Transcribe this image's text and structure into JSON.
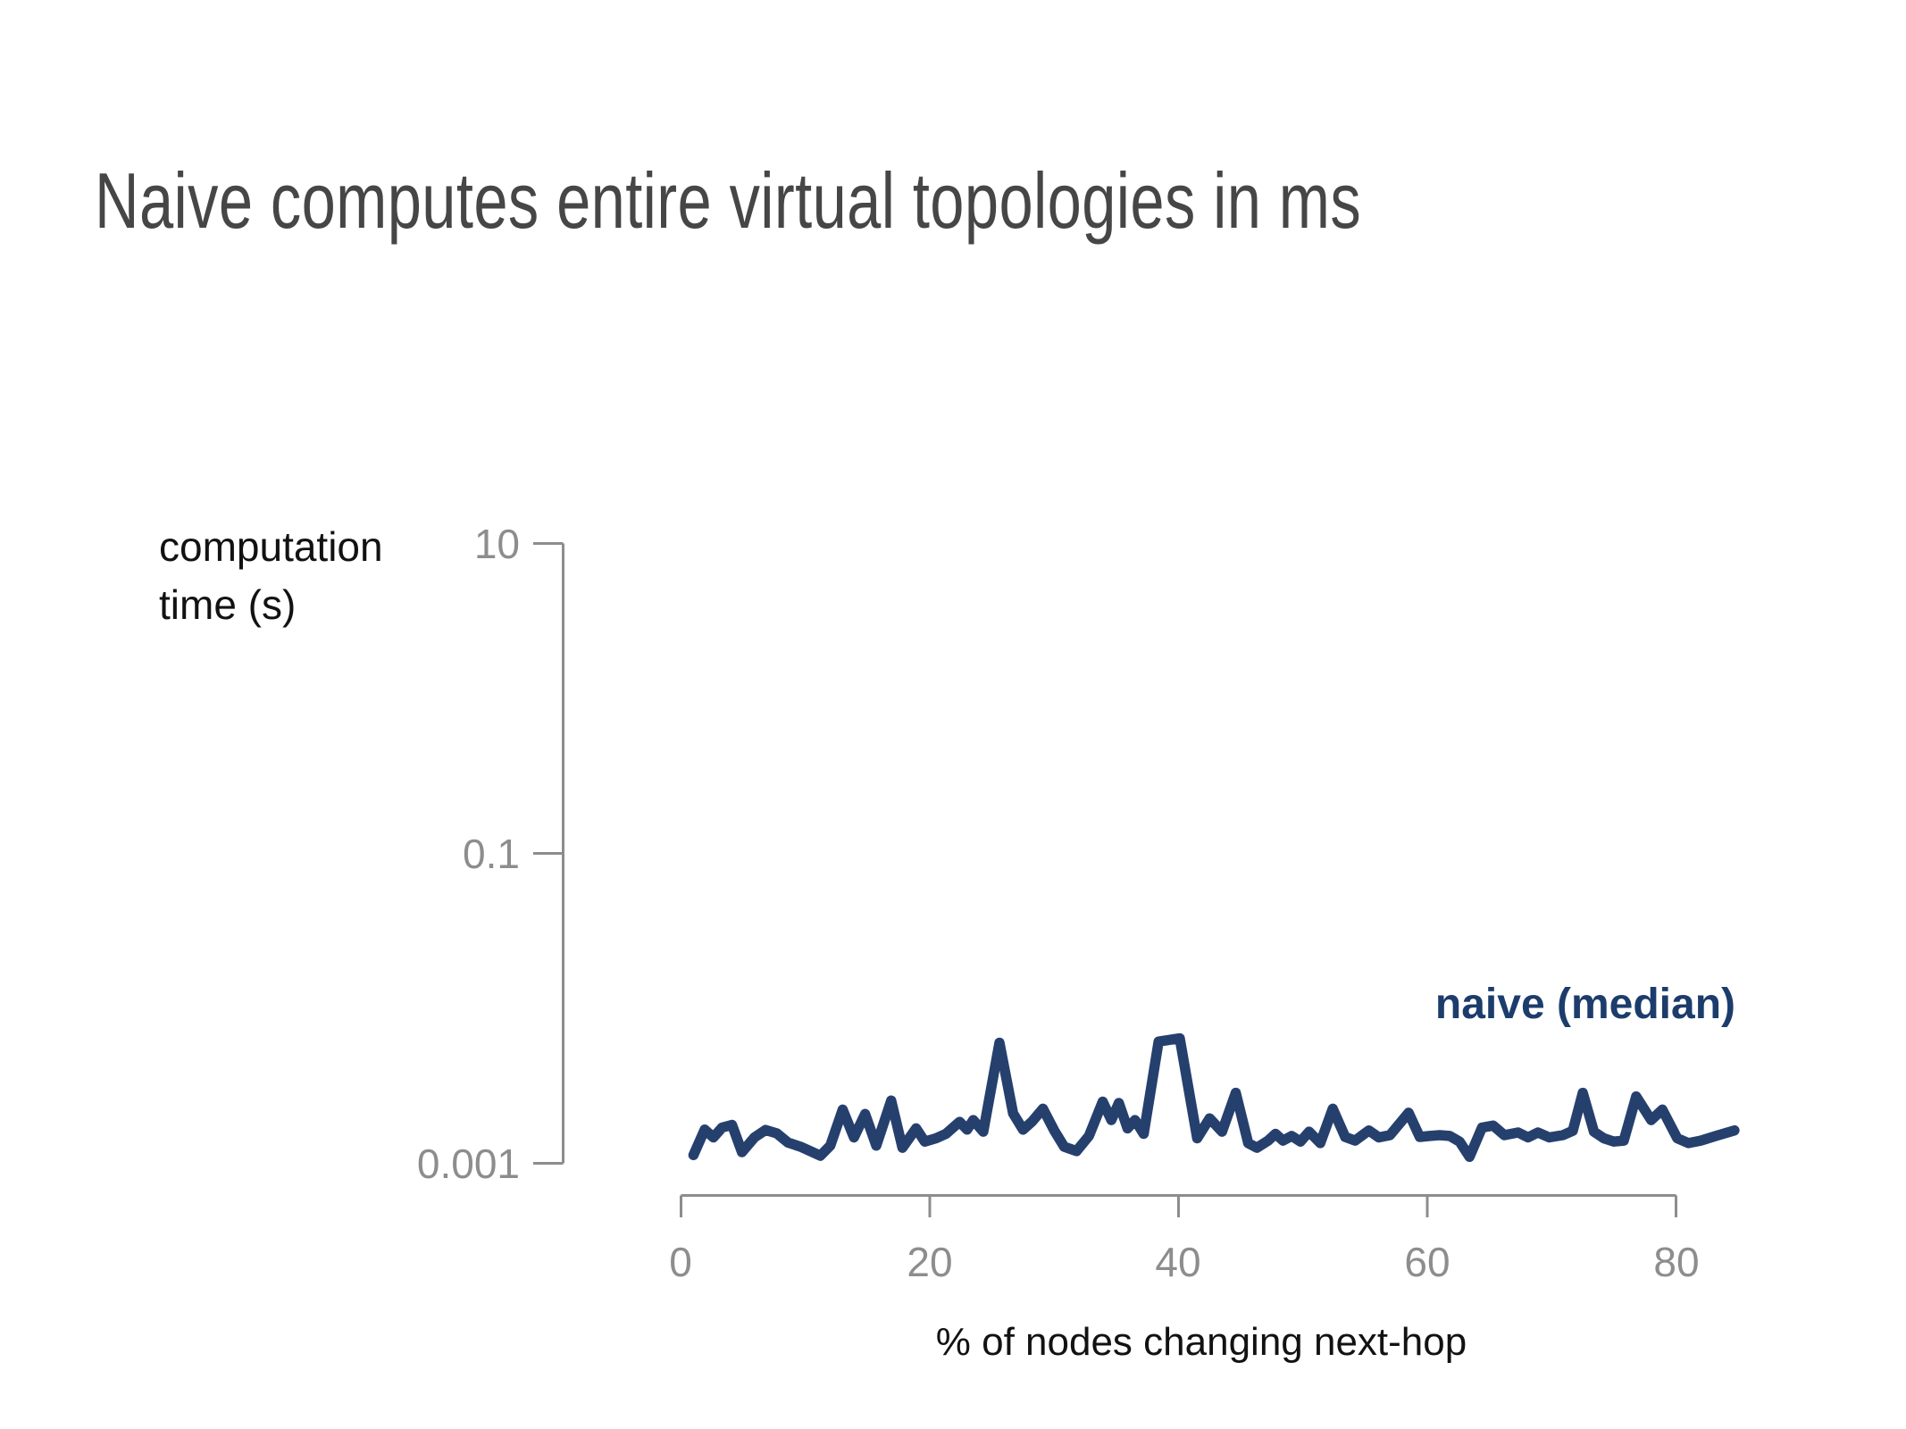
{
  "chart_data": {
    "type": "line",
    "title": "Naive computes entire virtual topologies in ms",
    "xlabel": "% of nodes changing next-hop",
    "ylabel": "computation\ntime (s)",
    "xscale": "linear",
    "yscale": "log",
    "xlim": [
      0,
      80
    ],
    "ylim": [
      0.001,
      10
    ],
    "grid": false,
    "x_tick_labels": [
      "0",
      "20",
      "40",
      "60",
      "80"
    ],
    "y_tick_labels": [
      "10",
      "0.1",
      "0.001"
    ],
    "legend": {
      "label": "naive (median)",
      "position": "right-of-plot",
      "color": "#1c3c6c"
    },
    "series": [
      {
        "name": "naive (median)",
        "color": "#26406e",
        "x": [
          1,
          1.9,
          2.6,
          3.3,
          4.1,
          4.9,
          5.9,
          6.8,
          7.7,
          8.6,
          9.6,
          11.2,
          12,
          13,
          13.9,
          14.8,
          15.7,
          16.9,
          17.8,
          18.9,
          19.6,
          20.5,
          21.3,
          22.4,
          23,
          23.5,
          24.3,
          25.6,
          26.7,
          27.5,
          28.2,
          29.1,
          30,
          30.8,
          31.8,
          32.8,
          33.9,
          34.6,
          35.2,
          35.9,
          36.5,
          37.2,
          38.4,
          40.1,
          41.5,
          42.5,
          43.5,
          44.6,
          45.6,
          46.3,
          47.2,
          47.8,
          48.4,
          49.1,
          49.8,
          50.5,
          51.4,
          52.4,
          53.4,
          54.2,
          55.3,
          56.1,
          57,
          58.5,
          59.4,
          60.2,
          61,
          61.8,
          62.6,
          63.4,
          64.4,
          65.3,
          66.2,
          67.3,
          68.1,
          68.9,
          69.8,
          70.9,
          71.7,
          72.5,
          73.4,
          74.2,
          75,
          75.8,
          76.8,
          78,
          78.9,
          80.1,
          81,
          82,
          83.2,
          84.7
        ],
        "y": [
          0.00113,
          0.00165,
          0.00147,
          0.0017,
          0.00177,
          0.00118,
          0.00147,
          0.00164,
          0.00156,
          0.00136,
          0.00128,
          0.00112,
          0.0013,
          0.00222,
          0.00147,
          0.00208,
          0.0013,
          0.00254,
          0.00126,
          0.00168,
          0.00138,
          0.00145,
          0.00155,
          0.00185,
          0.00165,
          0.0019,
          0.0016,
          0.006,
          0.0021,
          0.00165,
          0.00185,
          0.00225,
          0.00163,
          0.00128,
          0.0012,
          0.0015,
          0.0025,
          0.0019,
          0.00245,
          0.00168,
          0.0019,
          0.00155,
          0.0061,
          0.0064,
          0.00145,
          0.00195,
          0.0016,
          0.00285,
          0.00135,
          0.00126,
          0.0014,
          0.00155,
          0.0014,
          0.0015,
          0.00138,
          0.0016,
          0.00135,
          0.00225,
          0.00148,
          0.0014,
          0.00163,
          0.00147,
          0.00152,
          0.00212,
          0.00148,
          0.0015,
          0.00152,
          0.0015,
          0.00138,
          0.0011,
          0.0017,
          0.00175,
          0.00152,
          0.00158,
          0.00147,
          0.00158,
          0.00147,
          0.00152,
          0.00162,
          0.00285,
          0.0016,
          0.00145,
          0.00138,
          0.0014,
          0.0027,
          0.0019,
          0.00222,
          0.00145,
          0.00135,
          0.0014,
          0.0015,
          0.00163
        ]
      }
    ]
  },
  "colors": {
    "title": "#464646",
    "axis": "#8d8d8d",
    "text": "#121212"
  }
}
